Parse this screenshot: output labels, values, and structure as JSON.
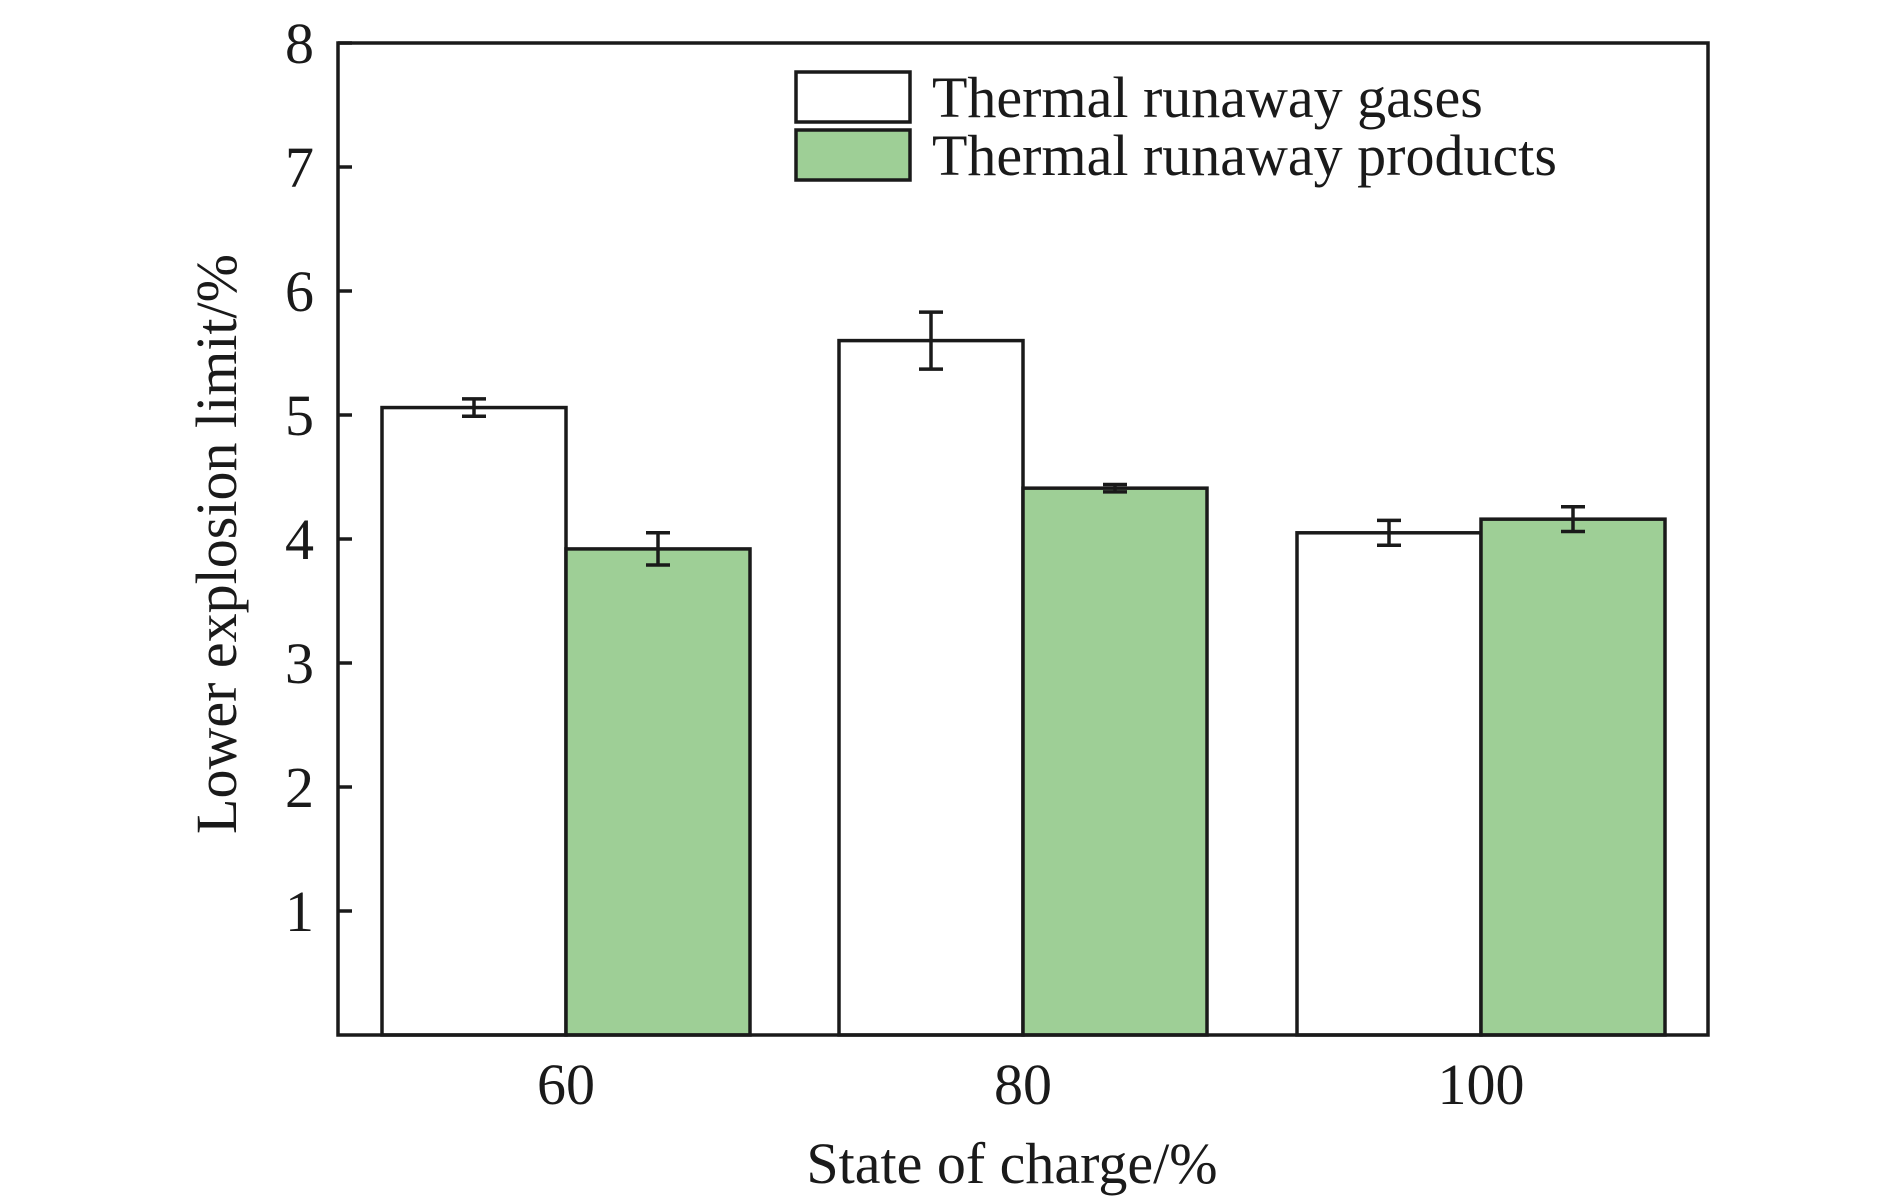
{
  "chart_data": {
    "type": "bar",
    "title": "",
    "xlabel": "State of charge/%",
    "ylabel": "Lower explosion limit/%",
    "categories": [
      "60",
      "80",
      "100"
    ],
    "ylim": [
      0,
      8
    ],
    "yticks": [
      "1",
      "2",
      "3",
      "4",
      "5",
      "6",
      "7",
      "8"
    ],
    "grid": false,
    "legend_position": "top-right",
    "series": [
      {
        "name": "Thermal runaway gases",
        "color": "#ffffff",
        "values": [
          5.06,
          5.6,
          4.05
        ],
        "errors": [
          0.07,
          0.23,
          0.1
        ]
      },
      {
        "name": "Thermal runaway products",
        "color": "#9ecf96",
        "values": [
          3.92,
          4.41,
          4.16
        ],
        "errors": [
          0.13,
          0.03,
          0.1
        ]
      }
    ]
  }
}
